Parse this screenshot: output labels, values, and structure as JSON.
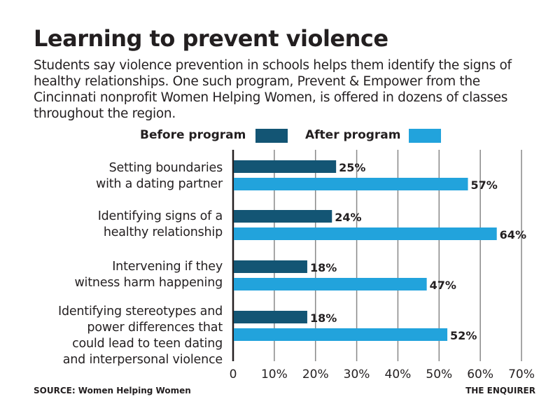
{
  "title": "Learning to prevent violence",
  "subtitle": "Students say violence prevention in schools helps them identify the signs of healthy relationships. One such program, Prevent & Empower from the Cincinnati nonprofit Women Helping Women, is offered in dozens of classes throughout the region.",
  "source": "SOURCE: Women Helping Women",
  "credit": "THE ENQUIRER",
  "colors": {
    "before": "#135574",
    "after": "#22a3dc",
    "text": "#231f20",
    "grid": "#888888"
  },
  "chart_data": {
    "type": "bar",
    "orientation": "horizontal",
    "categories": [
      "Setting boundaries\nwith a dating partner",
      "Identifying signs of a\nhealthy relationship",
      "Intervening if they\nwitness harm happening",
      "Identifying stereotypes and\npower differences that\ncould lead to teen dating\nand interpersonal violence"
    ],
    "series": [
      {
        "name": "Before program",
        "values": [
          25,
          24,
          18,
          18
        ]
      },
      {
        "name": "After program",
        "values": [
          57,
          64,
          47,
          52
        ]
      }
    ],
    "data_labels": [
      [
        "25%",
        "24%",
        "18%",
        "18%"
      ],
      [
        "57%",
        "64%",
        "47%",
        "52%"
      ]
    ],
    "xlim": [
      0,
      70
    ],
    "xticks": [
      "0",
      "10%",
      "20%",
      "30%",
      "40%",
      "50%",
      "60%",
      "70%"
    ],
    "grid": true,
    "legend": "top"
  }
}
